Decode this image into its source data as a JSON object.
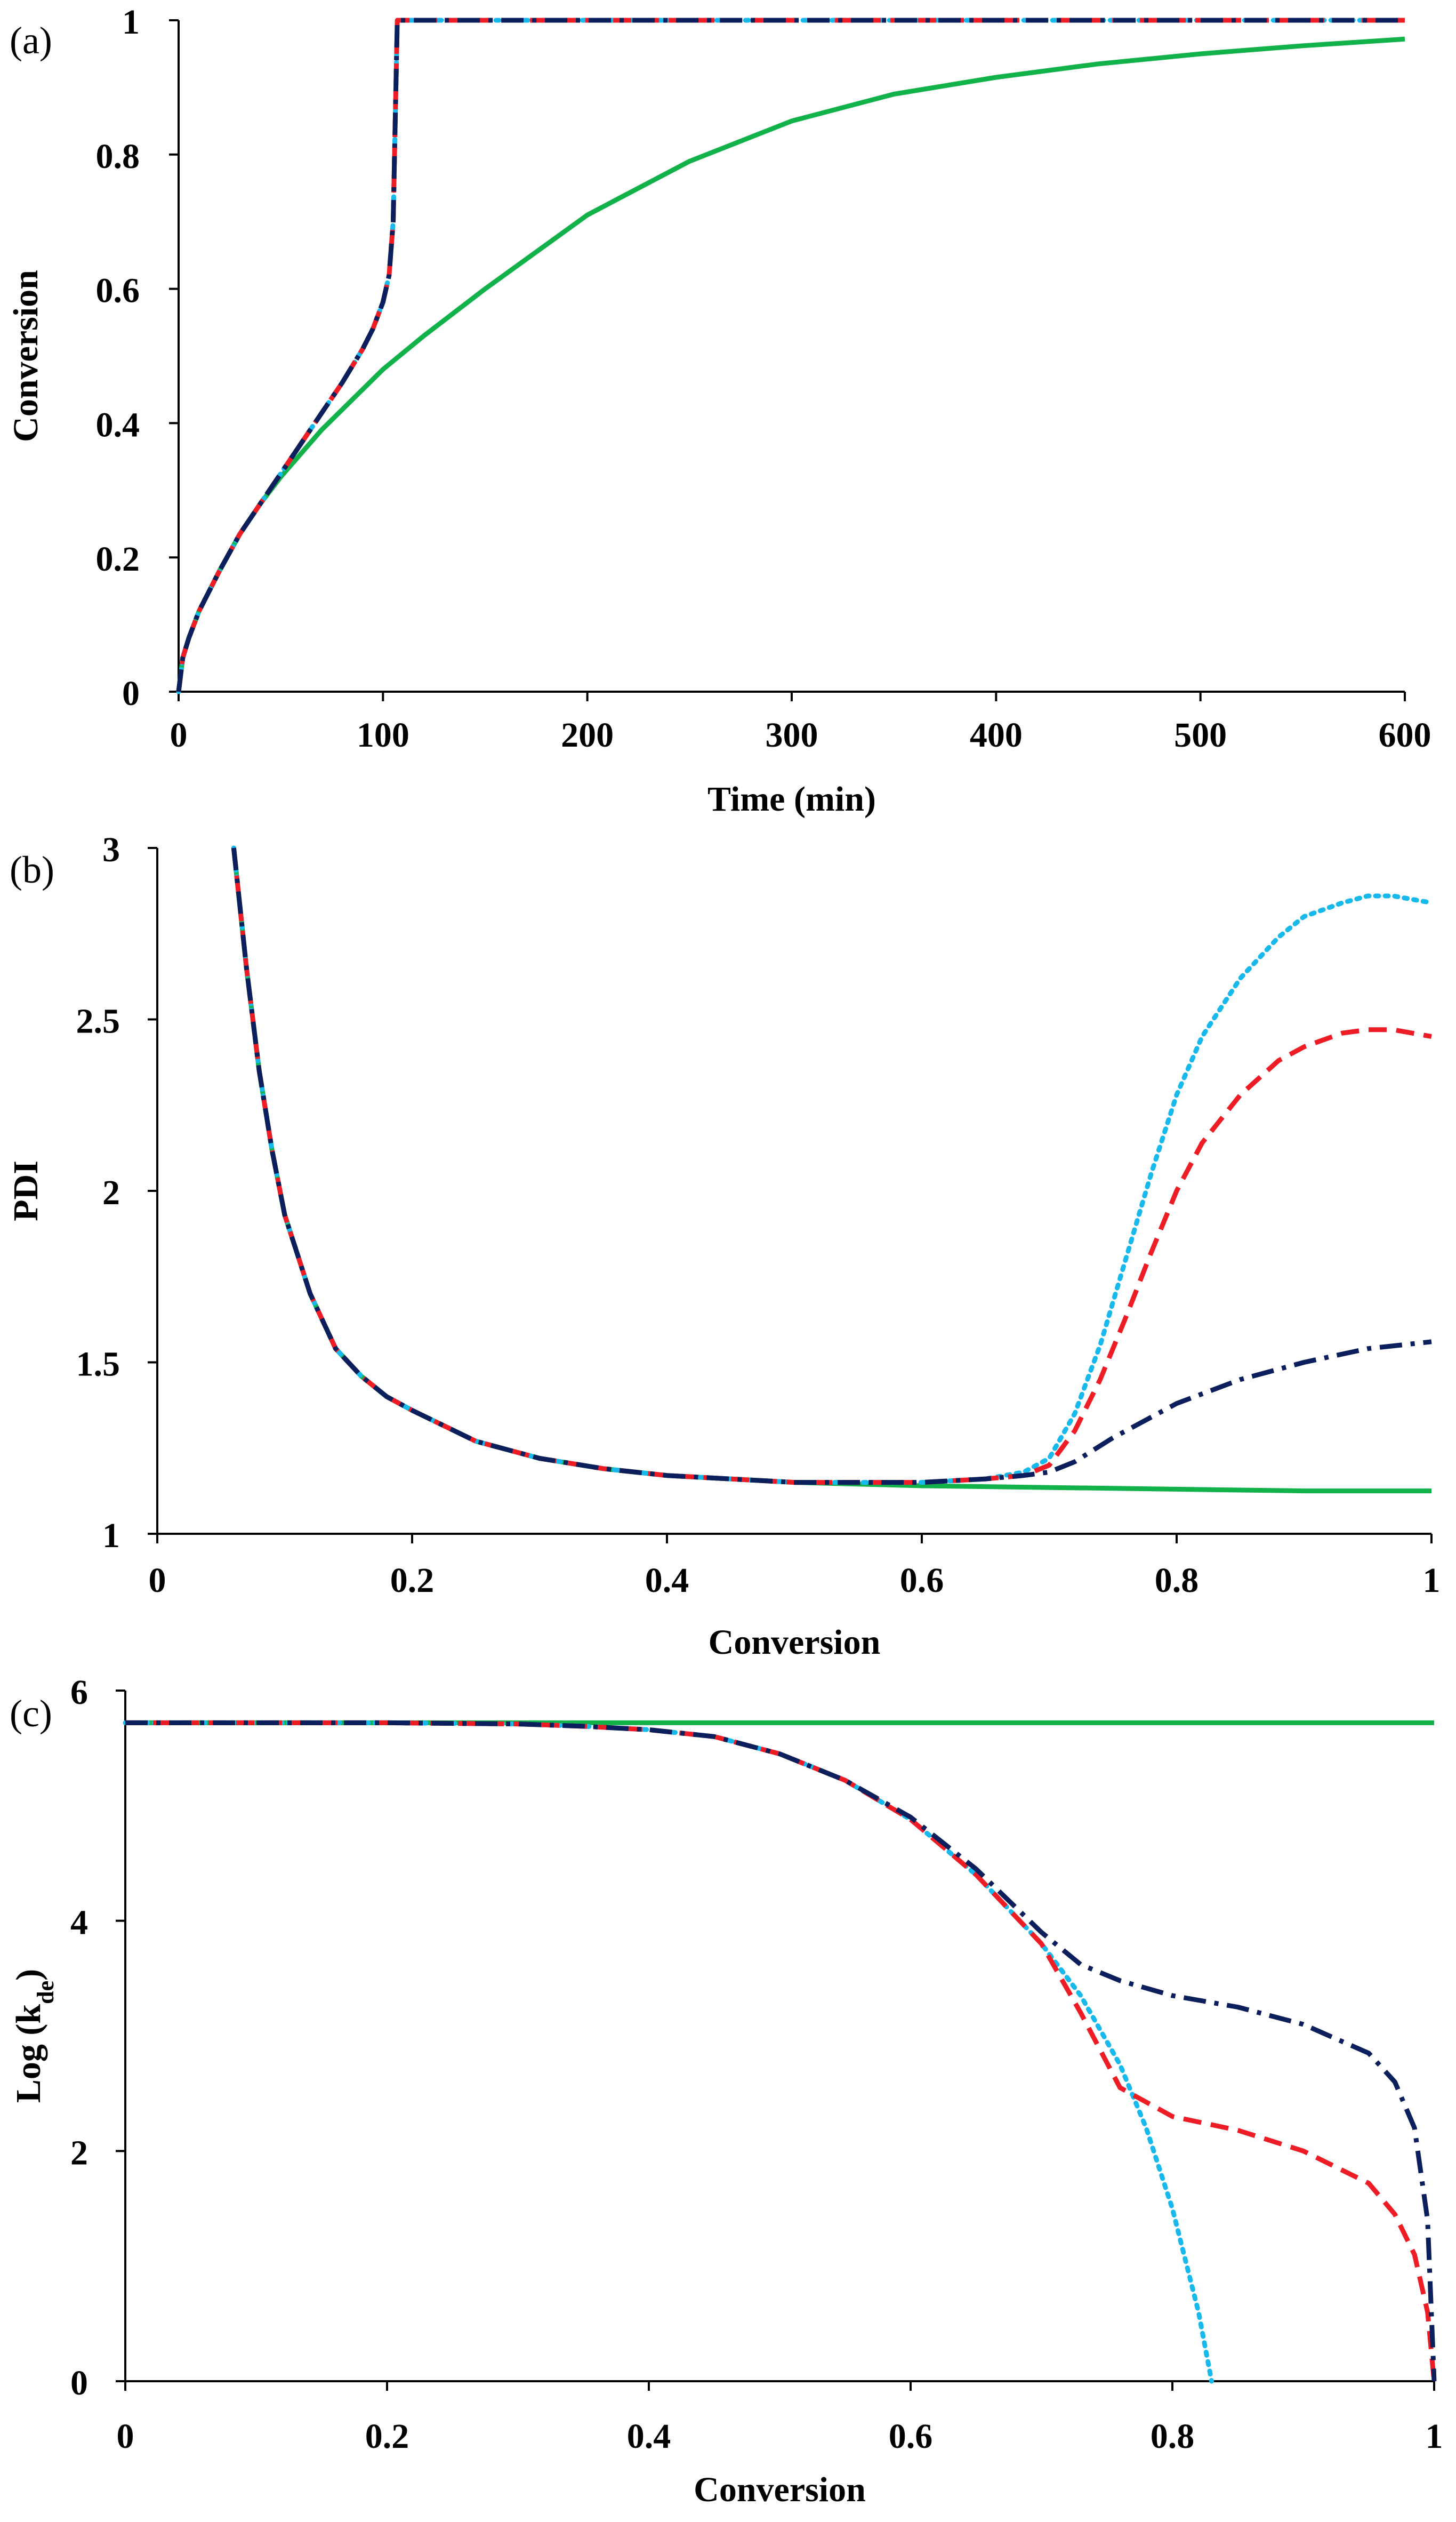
{
  "chart_data": [
    {
      "type": "line",
      "panel_label": "(a)",
      "title": "",
      "xlabel": "Time (min)",
      "ylabel": "Conversion",
      "ylabel_sub": "",
      "xlim": [
        0,
        600
      ],
      "ylim": [
        0,
        1
      ],
      "xticks": [
        0,
        100,
        200,
        300,
        400,
        500,
        600
      ],
      "yticks": [
        0,
        0.2,
        0.4,
        0.6,
        0.8,
        1
      ],
      "xtick_labels": [
        "0",
        "100",
        "200",
        "300",
        "400",
        "500",
        "600"
      ],
      "ytick_labels": [
        "0",
        "0.2",
        "0.4",
        "0.6",
        "0.8",
        "1"
      ],
      "grid": false,
      "series": [
        {
          "name": "green-solid",
          "color": "#12b24a",
          "dash": "solid",
          "x": [
            0,
            2,
            5,
            10,
            20,
            30,
            40,
            50,
            60,
            70,
            80,
            100,
            120,
            150,
            200,
            250,
            300,
            350,
            400,
            450,
            500,
            550,
            600
          ],
          "y": [
            0,
            0.05,
            0.08,
            0.12,
            0.18,
            0.235,
            0.28,
            0.32,
            0.355,
            0.39,
            0.42,
            0.48,
            0.53,
            0.6,
            0.71,
            0.79,
            0.85,
            0.89,
            0.915,
            0.935,
            0.95,
            0.962,
            0.972
          ]
        },
        {
          "name": "cyan-dotted",
          "color": "#17b9ec",
          "dash": "dotted",
          "x": [
            0,
            2,
            5,
            10,
            20,
            30,
            40,
            50,
            60,
            70,
            80,
            90,
            95,
            100,
            103,
            105,
            106,
            107,
            600
          ],
          "y": [
            0,
            0.05,
            0.08,
            0.12,
            0.18,
            0.235,
            0.28,
            0.325,
            0.37,
            0.415,
            0.46,
            0.51,
            0.54,
            0.58,
            0.62,
            0.7,
            0.85,
            1,
            1
          ]
        },
        {
          "name": "red-dashed",
          "color": "#ee1c24",
          "dash": "dashed",
          "x": [
            0,
            2,
            5,
            10,
            20,
            30,
            40,
            50,
            60,
            70,
            80,
            90,
            95,
            100,
            103,
            105,
            106,
            107,
            600
          ],
          "y": [
            0,
            0.05,
            0.08,
            0.12,
            0.18,
            0.235,
            0.28,
            0.325,
            0.37,
            0.415,
            0.46,
            0.51,
            0.54,
            0.58,
            0.62,
            0.7,
            0.85,
            1,
            1
          ]
        },
        {
          "name": "navy-dashdot",
          "color": "#0b1f5c",
          "dash": "dashdot",
          "x": [
            0,
            2,
            5,
            10,
            20,
            30,
            40,
            50,
            60,
            70,
            80,
            90,
            95,
            100,
            103,
            105,
            106,
            107,
            600
          ],
          "y": [
            0,
            0.05,
            0.08,
            0.12,
            0.18,
            0.235,
            0.28,
            0.325,
            0.37,
            0.415,
            0.46,
            0.51,
            0.54,
            0.58,
            0.62,
            0.7,
            0.85,
            1,
            1
          ]
        }
      ]
    },
    {
      "type": "line",
      "panel_label": "(b)",
      "title": "",
      "xlabel": "Conversion",
      "ylabel": "PDI",
      "ylabel_sub": "",
      "xlim": [
        0,
        1
      ],
      "ylim": [
        1,
        3
      ],
      "xticks": [
        0,
        0.2,
        0.4,
        0.6,
        0.8,
        1
      ],
      "yticks": [
        1,
        1.5,
        2,
        2.5,
        3
      ],
      "xtick_labels": [
        "0",
        "0.2",
        "0.4",
        "0.6",
        "0.8",
        "1"
      ],
      "ytick_labels": [
        "1",
        "1.5",
        "2",
        "2.5",
        "3"
      ],
      "grid": false,
      "series": [
        {
          "name": "green-solid",
          "color": "#12b24a",
          "dash": "solid",
          "x": [
            0.06,
            0.07,
            0.08,
            0.09,
            0.1,
            0.12,
            0.14,
            0.16,
            0.18,
            0.2,
            0.25,
            0.3,
            0.35,
            0.4,
            0.5,
            0.6,
            0.7,
            0.8,
            0.9,
            1.0
          ],
          "y": [
            3.0,
            2.65,
            2.35,
            2.12,
            1.93,
            1.7,
            1.54,
            1.46,
            1.4,
            1.36,
            1.27,
            1.22,
            1.19,
            1.17,
            1.15,
            1.14,
            1.135,
            1.13,
            1.125,
            1.125
          ]
        },
        {
          "name": "cyan-dotted",
          "color": "#17b9ec",
          "dash": "dotted",
          "x": [
            0.06,
            0.07,
            0.08,
            0.09,
            0.1,
            0.12,
            0.14,
            0.16,
            0.18,
            0.2,
            0.25,
            0.3,
            0.35,
            0.4,
            0.5,
            0.6,
            0.65,
            0.68,
            0.7,
            0.72,
            0.74,
            0.76,
            0.78,
            0.8,
            0.82,
            0.85,
            0.88,
            0.9,
            0.93,
            0.95,
            0.97,
            1.0
          ],
          "y": [
            3.0,
            2.65,
            2.35,
            2.12,
            1.93,
            1.7,
            1.54,
            1.46,
            1.4,
            1.36,
            1.27,
            1.22,
            1.19,
            1.17,
            1.15,
            1.15,
            1.16,
            1.18,
            1.22,
            1.35,
            1.55,
            1.8,
            2.05,
            2.28,
            2.45,
            2.62,
            2.74,
            2.8,
            2.84,
            2.86,
            2.86,
            2.84
          ]
        },
        {
          "name": "red-dashed",
          "color": "#ee1c24",
          "dash": "dashed",
          "x": [
            0.06,
            0.07,
            0.08,
            0.09,
            0.1,
            0.12,
            0.14,
            0.16,
            0.18,
            0.2,
            0.25,
            0.3,
            0.35,
            0.4,
            0.5,
            0.6,
            0.65,
            0.68,
            0.7,
            0.72,
            0.74,
            0.76,
            0.78,
            0.8,
            0.82,
            0.85,
            0.88,
            0.9,
            0.93,
            0.95,
            0.97,
            1.0
          ],
          "y": [
            3.0,
            2.65,
            2.35,
            2.12,
            1.93,
            1.7,
            1.54,
            1.46,
            1.4,
            1.36,
            1.27,
            1.22,
            1.19,
            1.17,
            1.15,
            1.15,
            1.16,
            1.17,
            1.2,
            1.3,
            1.45,
            1.63,
            1.82,
            2.0,
            2.14,
            2.28,
            2.38,
            2.42,
            2.46,
            2.47,
            2.47,
            2.45
          ]
        },
        {
          "name": "navy-dashdot",
          "color": "#0b1f5c",
          "dash": "dashdot",
          "x": [
            0.06,
            0.07,
            0.08,
            0.09,
            0.1,
            0.12,
            0.14,
            0.16,
            0.18,
            0.2,
            0.25,
            0.3,
            0.35,
            0.4,
            0.5,
            0.6,
            0.65,
            0.68,
            0.7,
            0.72,
            0.75,
            0.8,
            0.85,
            0.9,
            0.95,
            1.0
          ],
          "y": [
            3.0,
            2.65,
            2.35,
            2.12,
            1.93,
            1.7,
            1.54,
            1.46,
            1.4,
            1.36,
            1.27,
            1.22,
            1.19,
            1.17,
            1.15,
            1.15,
            1.16,
            1.17,
            1.18,
            1.21,
            1.28,
            1.38,
            1.45,
            1.5,
            1.54,
            1.56
          ]
        }
      ]
    },
    {
      "type": "line",
      "panel_label": "(c)",
      "title": "",
      "xlabel": "Conversion",
      "ylabel": "Log (k",
      "ylabel_sub": "de",
      "ylabel_suffix": ")",
      "xlim": [
        0,
        1
      ],
      "ylim": [
        0,
        6
      ],
      "xticks": [
        0,
        0.2,
        0.4,
        0.6,
        0.8,
        1
      ],
      "yticks": [
        0,
        2,
        4,
        6
      ],
      "xtick_labels": [
        "0",
        "0.2",
        "0.4",
        "0.6",
        "0.8",
        "1"
      ],
      "ytick_labels": [
        "0",
        "2",
        "4",
        "6"
      ],
      "grid": false,
      "series": [
        {
          "name": "green-solid",
          "color": "#12b24a",
          "dash": "solid",
          "x": [
            0,
            1.0
          ],
          "y": [
            5.72,
            5.72
          ]
        },
        {
          "name": "cyan-dotted",
          "color": "#17b9ec",
          "dash": "dotted",
          "x": [
            0,
            0.1,
            0.2,
            0.3,
            0.35,
            0.4,
            0.45,
            0.5,
            0.55,
            0.6,
            0.65,
            0.7,
            0.73,
            0.76,
            0.78,
            0.8,
            0.82,
            0.83
          ],
          "y": [
            5.72,
            5.72,
            5.72,
            5.71,
            5.69,
            5.66,
            5.6,
            5.45,
            5.22,
            4.88,
            4.4,
            3.8,
            3.35,
            2.75,
            2.2,
            1.5,
            0.6,
            0
          ]
        },
        {
          "name": "red-dashed",
          "color": "#ee1c24",
          "dash": "dashed",
          "x": [
            0,
            0.1,
            0.2,
            0.3,
            0.35,
            0.4,
            0.45,
            0.5,
            0.55,
            0.6,
            0.65,
            0.7,
            0.73,
            0.76,
            0.8,
            0.85,
            0.9,
            0.95,
            0.97,
            0.985,
            0.995,
            1.0
          ],
          "y": [
            5.72,
            5.72,
            5.72,
            5.71,
            5.69,
            5.66,
            5.6,
            5.45,
            5.22,
            4.88,
            4.4,
            3.8,
            3.2,
            2.55,
            2.3,
            2.18,
            2.0,
            1.72,
            1.45,
            1.1,
            0.6,
            0
          ]
        },
        {
          "name": "navy-dashdot",
          "color": "#0b1f5c",
          "dash": "dashdot",
          "x": [
            0,
            0.1,
            0.2,
            0.3,
            0.35,
            0.4,
            0.45,
            0.5,
            0.55,
            0.6,
            0.65,
            0.7,
            0.73,
            0.76,
            0.8,
            0.85,
            0.9,
            0.95,
            0.97,
            0.985,
            0.995,
            1.0
          ],
          "y": [
            5.72,
            5.72,
            5.72,
            5.71,
            5.69,
            5.66,
            5.6,
            5.45,
            5.22,
            4.9,
            4.45,
            3.9,
            3.62,
            3.48,
            3.35,
            3.25,
            3.1,
            2.85,
            2.6,
            2.2,
            1.4,
            0
          ]
        }
      ]
    }
  ]
}
